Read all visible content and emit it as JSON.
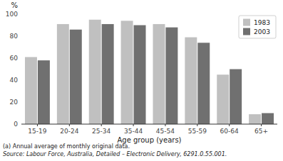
{
  "chart_data": {
    "type": "bar",
    "xlabel": "Age group (years)",
    "ylabel": "%",
    "categories": [
      "15-19",
      "20-24",
      "25-34",
      "35-44",
      "45-54",
      "55-59",
      "60-64",
      "65+"
    ],
    "series": [
      {
        "name": "1983",
        "color": "#c0c0c0",
        "values": [
          61,
          91,
          95,
          94,
          91,
          79,
          45,
          9
        ]
      },
      {
        "name": "2003",
        "color": "#707070",
        "values": [
          58,
          86,
          91,
          90,
          88,
          74,
          50,
          10
        ]
      }
    ],
    "ylim": [
      0,
      100
    ],
    "yticks": [
      0,
      20,
      40,
      60,
      80,
      100
    ],
    "grid": false,
    "legend": "upper right",
    "annotations": [
      "(a) Annual average of monthly original data.",
      "Source: Labour Force, Australia, Detailed – Electronic Delivery, 6291.0.55.001."
    ]
  }
}
